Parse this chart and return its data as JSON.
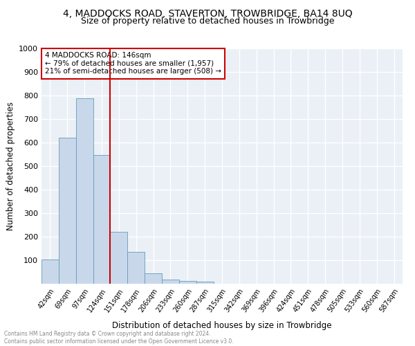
{
  "title": "4, MADDOCKS ROAD, STAVERTON, TROWBRIDGE, BA14 8UQ",
  "subtitle": "Size of property relative to detached houses in Trowbridge",
  "xlabel": "Distribution of detached houses by size in Trowbridge",
  "ylabel": "Number of detached properties",
  "categories": [
    "42sqm",
    "69sqm",
    "97sqm",
    "124sqm",
    "151sqm",
    "178sqm",
    "206sqm",
    "233sqm",
    "260sqm",
    "287sqm",
    "315sqm",
    "342sqm",
    "369sqm",
    "396sqm",
    "424sqm",
    "451sqm",
    "478sqm",
    "505sqm",
    "533sqm",
    "560sqm",
    "587sqm"
  ],
  "values": [
    103,
    622,
    787,
    548,
    222,
    135,
    45,
    18,
    12,
    9,
    0,
    0,
    0,
    0,
    0,
    0,
    0,
    0,
    0,
    0,
    0
  ],
  "bar_color": "#c8d8ea",
  "bar_edge_color": "#6699bb",
  "vline_x_index": 4,
  "vline_color": "#cc0000",
  "annotation_text": "4 MADDOCKS ROAD: 146sqm\n← 79% of detached houses are smaller (1,957)\n21% of semi-detached houses are larger (508) →",
  "annotation_box_color": "#ffffff",
  "annotation_box_edge": "#cc0000",
  "ylim": [
    0,
    1000
  ],
  "yticks": [
    0,
    100,
    200,
    300,
    400,
    500,
    600,
    700,
    800,
    900,
    1000
  ],
  "background_color": "#eaf0f6",
  "grid_color": "#ffffff",
  "footer_line1": "Contains HM Land Registry data © Crown copyright and database right 2024.",
  "footer_line2": "Contains public sector information licensed under the Open Government Licence v3.0."
}
